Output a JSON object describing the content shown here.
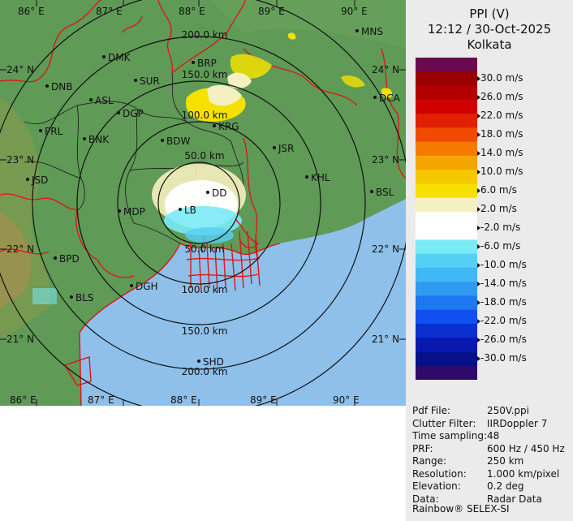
{
  "map": {
    "lon_labels": [
      "86° E",
      "87° E",
      "88° E",
      "89° E",
      "90° E"
    ],
    "lat_labels_left": [
      "24° N",
      "23° N",
      "22° N",
      "21° N"
    ],
    "lat_labels_right": [
      "24° N",
      "23° N",
      "22° N",
      "21° N"
    ],
    "range_labels": [
      "200.0 km",
      "150.0 km",
      "100.0 km",
      "50.0 km",
      "50.0 km",
      "100.0 km",
      "150.0 km",
      "200.0 km"
    ],
    "cities": [
      {
        "id": "mns",
        "name": "MNS"
      },
      {
        "id": "dmk",
        "name": "DMK"
      },
      {
        "id": "brp",
        "name": "BRP"
      },
      {
        "id": "dnb",
        "name": "DNB"
      },
      {
        "id": "sur",
        "name": "SUR"
      },
      {
        "id": "asl",
        "name": "ASL"
      },
      {
        "id": "dgp",
        "name": "DGP"
      },
      {
        "id": "dca",
        "name": "DCA"
      },
      {
        "id": "prl",
        "name": "PRL"
      },
      {
        "id": "krg",
        "name": "KRG"
      },
      {
        "id": "bnk",
        "name": "BNK"
      },
      {
        "id": "bdw",
        "name": "BDW"
      },
      {
        "id": "jsr",
        "name": "JSR"
      },
      {
        "id": "jsd",
        "name": "JSD"
      },
      {
        "id": "khl",
        "name": "KHL"
      },
      {
        "id": "dd",
        "name": "DD"
      },
      {
        "id": "bsl",
        "name": "BSL"
      },
      {
        "id": "mdp",
        "name": "MDP"
      },
      {
        "id": "lb",
        "name": "LB"
      },
      {
        "id": "bpd",
        "name": "BPD"
      },
      {
        "id": "dgh",
        "name": "DGH"
      },
      {
        "id": "bls",
        "name": "BLS"
      },
      {
        "id": "shd",
        "name": "SHD"
      }
    ],
    "colors": {
      "land": "#5f9a56",
      "sea": "#8ec0ea",
      "border": "#e01414",
      "coast": "#e01414"
    }
  },
  "header": {
    "product": "PPI (V)",
    "datetime": "12:12 / 30-Oct-2025",
    "station": "Kolkata"
  },
  "legend": {
    "colors": [
      "#6a0a4e",
      "#9a0000",
      "#b20000",
      "#d00000",
      "#e02000",
      "#f04a00",
      "#f57a00",
      "#f5a500",
      "#f5c800",
      "#f5e000",
      "#f5f0c0",
      "#ffffff",
      "#ffffff",
      "#7aeaf5",
      "#55d0f5",
      "#40b8f5",
      "#2e9af0",
      "#1e78f0",
      "#1050f0",
      "#0a30d0",
      "#0818b0",
      "#06108a",
      "#300a6a"
    ],
    "labels": [
      "30.0 m/s",
      "26.0 m/s",
      "22.0 m/s",
      "18.0 m/s",
      "14.0 m/s",
      "10.0 m/s",
      "6.0 m/s",
      "2.0 m/s",
      "-2.0 m/s",
      "-6.0 m/s",
      "-10.0 m/s",
      "-14.0 m/s",
      "-18.0 m/s",
      "-22.0 m/s",
      "-26.0 m/s",
      "-30.0 m/s"
    ]
  },
  "info": [
    {
      "key": "Pdf File:",
      "value": "250V.ppi"
    },
    {
      "key": "Clutter Filter:",
      "value": "IIRDoppler 7"
    },
    {
      "key": "Time sampling:",
      "value": "48"
    },
    {
      "key": "PRF:",
      "value": "600 Hz / 450 Hz"
    },
    {
      "key": "Range:",
      "value": "250 km"
    },
    {
      "key": "Resolution:",
      "value": "1.000 km/pixel"
    },
    {
      "key": "Elevation:",
      "value": "0.2 deg"
    },
    {
      "key": "Data:",
      "value": "Radar Data"
    }
  ],
  "footer": "Rainbow® SELEX-SI"
}
